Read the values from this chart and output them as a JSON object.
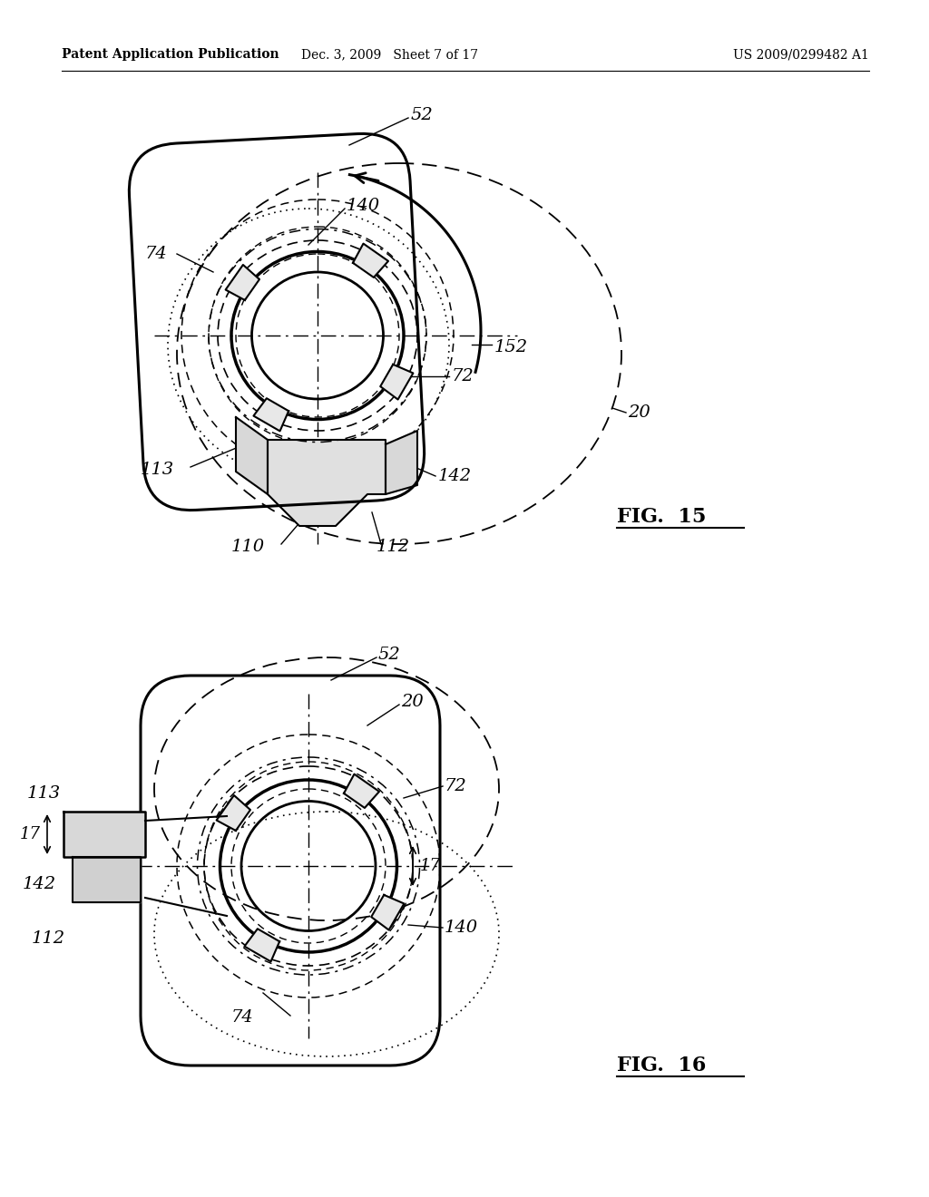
{
  "bg_color": "#ffffff",
  "header_left": "Patent Application Publication",
  "header_mid": "Dec. 3, 2009   Sheet 7 of 17",
  "header_right": "US 2009/0299482 A1"
}
